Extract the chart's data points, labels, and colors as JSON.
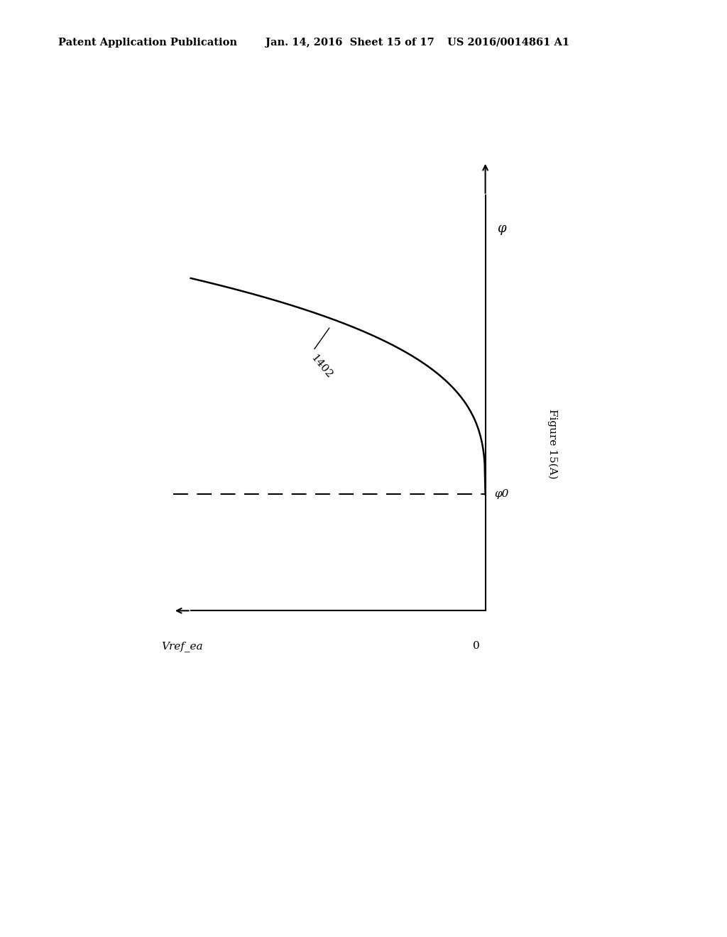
{
  "header_left": "Patent Application Publication",
  "header_mid": "Jan. 14, 2016  Sheet 15 of 17",
  "header_right": "US 2016/0014861 A1",
  "figure_label": "Figure 15(A)",
  "curve_label": "1402",
  "y_axis_label": "φ",
  "y0_label": "φ0",
  "x_axis_label": "Vref_ea",
  "origin_label": "0",
  "background_color": "#ffffff",
  "line_color": "#000000",
  "dashed_color": "#000000",
  "header_fontsize": 10.5,
  "label_fontsize": 11,
  "figure_label_fontsize": 11
}
